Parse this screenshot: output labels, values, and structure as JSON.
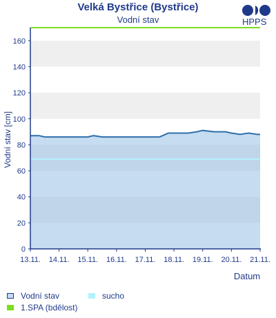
{
  "header": {
    "title": "Velká Bystřice (Bystřice)",
    "subtitle": "Vodní stav",
    "logo_text": "HPPS"
  },
  "colors": {
    "title": "#1f3a8a",
    "water_line": "#2f6faa",
    "water_fill": "#c6dcf1",
    "drought": "#b2f2ff",
    "spa1": "#7ddc1f",
    "band_alt": "#efefef",
    "band_alt_inner": "#b7cde3"
  },
  "legend": {
    "water": "Vodní stav",
    "drought": "sucho",
    "spa1": "1.SPA (bdělost)"
  },
  "chart_data": {
    "type": "area",
    "title": "Velká Bystřice (Bystřice)",
    "subtitle": "Vodní stav",
    "xlabel": "Datum",
    "ylabel": "Vodní stav [cm]",
    "ylim": [
      0,
      170
    ],
    "yticks": [
      0,
      20,
      40,
      60,
      80,
      100,
      120,
      140,
      160
    ],
    "xlim": [
      0,
      8
    ],
    "xticks": [
      {
        "x": 0,
        "label": "13.11."
      },
      {
        "x": 1,
        "label": "14.11."
      },
      {
        "x": 2,
        "label": "15.11."
      },
      {
        "x": 3,
        "label": "16.11."
      },
      {
        "x": 4,
        "label": "17.11."
      },
      {
        "x": 5,
        "label": "18.11."
      },
      {
        "x": 6,
        "label": "19.11."
      },
      {
        "x": 7,
        "label": "20.11."
      },
      {
        "x": 8,
        "label": "21.11."
      }
    ],
    "grid": false,
    "alternating_bands": true,
    "series": [
      {
        "name": "Vodní stav",
        "x": [
          0,
          0.3,
          0.5,
          1,
          1.5,
          2,
          2.2,
          2.5,
          3,
          3.3,
          3.6,
          4,
          4.4,
          4.5,
          4.7,
          4.8,
          5,
          5.5,
          5.8,
          6,
          6.4,
          6.8,
          7,
          7.3,
          7.6,
          7.9,
          8
        ],
        "y": [
          87,
          87,
          86,
          86,
          86,
          86,
          87,
          86,
          86,
          86,
          86,
          86,
          86,
          86,
          88,
          89,
          89,
          89,
          90,
          91,
          90,
          90,
          89,
          88,
          89,
          88,
          88
        ]
      }
    ],
    "thresholds": [
      {
        "name": "sucho",
        "value": 69
      },
      {
        "name": "1.SPA (bdělost)",
        "value": 170
      }
    ]
  }
}
